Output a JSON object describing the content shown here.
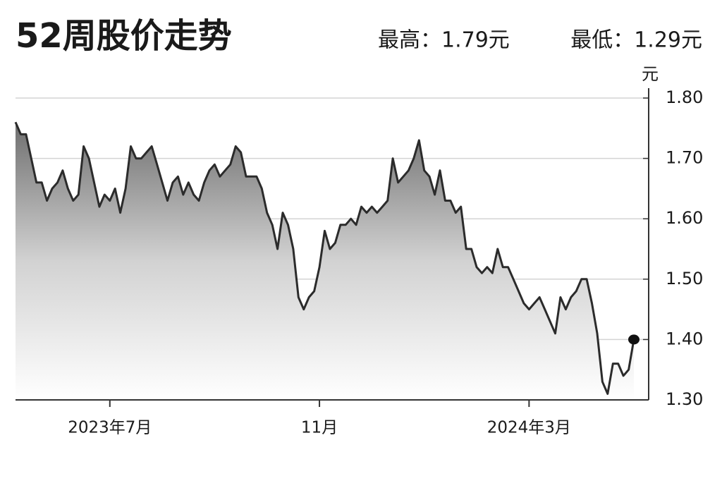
{
  "chart_data": {
    "type": "line",
    "title": "52周股价走势",
    "annotations": [
      "最高：1.79元",
      "最低：1.29元"
    ],
    "ylabel": "元",
    "color": "#2b2b2b",
    "grid": true,
    "ylim": [
      1.3,
      1.8
    ],
    "yticks": [
      {
        "value": 1.3,
        "label": "1.30"
      },
      {
        "value": 1.4,
        "label": "1.40"
      },
      {
        "value": 1.5,
        "label": "1.50"
      },
      {
        "value": 1.6,
        "label": "1.60"
      },
      {
        "value": 1.7,
        "label": "1.70"
      },
      {
        "value": 1.8,
        "label": "1.80"
      }
    ],
    "categories": [
      null,
      null,
      null,
      null,
      null,
      null,
      null,
      null,
      null,
      null,
      null,
      null,
      null,
      null,
      null,
      null,
      null,
      null,
      "2023年7月",
      null,
      null,
      null,
      null,
      null,
      null,
      null,
      null,
      null,
      null,
      null,
      null,
      null,
      null,
      null,
      null,
      null,
      null,
      null,
      null,
      null,
      null,
      null,
      null,
      null,
      null,
      null,
      null,
      null,
      null,
      null,
      null,
      null,
      null,
      null,
      null,
      null,
      null,
      null,
      "11月",
      null,
      null,
      null,
      null,
      null,
      null,
      null,
      null,
      null,
      null,
      null,
      null,
      null,
      null,
      null,
      null,
      null,
      null,
      null,
      null,
      null,
      null,
      null,
      null,
      null,
      null,
      null,
      null,
      null,
      null,
      null,
      null,
      null,
      null,
      null,
      null,
      null,
      null,
      null,
      "2024年3月",
      null,
      null,
      null,
      null,
      null,
      null,
      null,
      null,
      null,
      null,
      null,
      null,
      null,
      null,
      null,
      null,
      null,
      null,
      null,
      null
    ],
    "values": [
      1.76,
      1.74,
      1.74,
      1.7,
      1.66,
      1.66,
      1.63,
      1.65,
      1.66,
      1.68,
      1.65,
      1.63,
      1.64,
      1.72,
      1.7,
      1.66,
      1.62,
      1.64,
      1.63,
      1.65,
      1.61,
      1.65,
      1.72,
      1.7,
      1.7,
      1.71,
      1.72,
      1.69,
      1.66,
      1.63,
      1.66,
      1.67,
      1.64,
      1.66,
      1.64,
      1.63,
      1.66,
      1.68,
      1.69,
      1.67,
      1.68,
      1.69,
      1.72,
      1.71,
      1.67,
      1.67,
      1.67,
      1.65,
      1.61,
      1.59,
      1.55,
      1.61,
      1.59,
      1.55,
      1.47,
      1.45,
      1.47,
      1.48,
      1.52,
      1.58,
      1.55,
      1.56,
      1.59,
      1.59,
      1.6,
      1.59,
      1.62,
      1.61,
      1.62,
      1.61,
      1.62,
      1.63,
      1.7,
      1.66,
      1.67,
      1.68,
      1.7,
      1.73,
      1.68,
      1.67,
      1.64,
      1.68,
      1.63,
      1.63,
      1.61,
      1.62,
      1.55,
      1.55,
      1.52,
      1.51,
      1.52,
      1.51,
      1.55,
      1.52,
      1.52,
      1.5,
      1.48,
      1.46,
      1.45,
      1.46,
      1.47,
      1.45,
      1.43,
      1.41,
      1.47,
      1.45,
      1.47,
      1.48,
      1.5,
      1.5,
      1.46,
      1.41,
      1.33,
      1.31,
      1.36,
      1.36,
      1.34,
      1.35,
      1.4
    ]
  }
}
